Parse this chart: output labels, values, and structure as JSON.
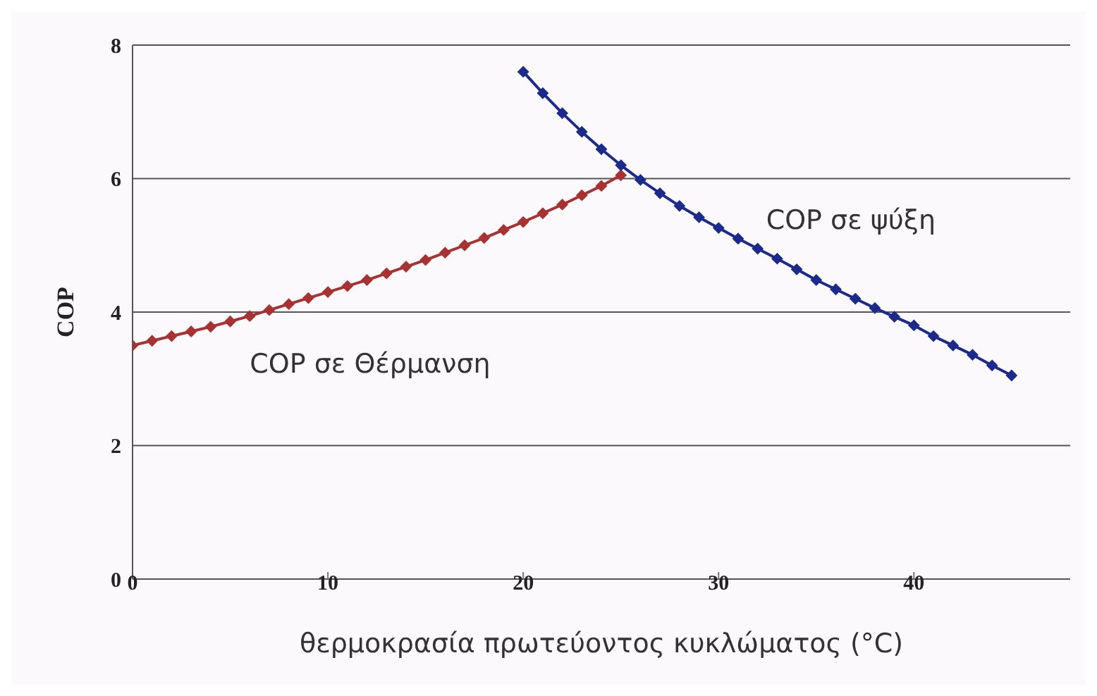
{
  "chart_data": {
    "type": "line",
    "xlabel": "θερμοκρασία πρωτεύοντος κυκλώματος (°C)",
    "ylabel": "COP",
    "xlim": [
      0,
      48
    ],
    "xticks": [
      0,
      10,
      20,
      30,
      40
    ],
    "ylim": [
      0,
      8
    ],
    "yticks": [
      0,
      2,
      4,
      6,
      8
    ],
    "grid": "y",
    "legend": false,
    "marker": "diamond",
    "line_style": "solid",
    "series": [
      {
        "name": "COP σε Θέρμανση",
        "color": "#a83232",
        "x": [
          0,
          1,
          2,
          3,
          4,
          5,
          6,
          7,
          8,
          9,
          10,
          11,
          12,
          13,
          14,
          15,
          16,
          17,
          18,
          19,
          20,
          21,
          22,
          23,
          24,
          25
        ],
        "values": [
          3.5,
          3.57,
          3.64,
          3.71,
          3.78,
          3.86,
          3.94,
          4.03,
          4.12,
          4.21,
          4.3,
          4.39,
          4.48,
          4.58,
          4.68,
          4.78,
          4.89,
          5.0,
          5.11,
          5.23,
          5.35,
          5.48,
          5.61,
          5.75,
          5.89,
          6.05
        ]
      },
      {
        "name": "COP σε ψύξη",
        "color": "#1c2a8c",
        "x": [
          20,
          21,
          22,
          23,
          24,
          25,
          26,
          27,
          28,
          29,
          30,
          31,
          32,
          33,
          34,
          35,
          36,
          37,
          38,
          39,
          40,
          41,
          42,
          43,
          44,
          45
        ],
        "values": [
          7.6,
          7.28,
          6.98,
          6.7,
          6.44,
          6.2,
          5.98,
          5.78,
          5.59,
          5.42,
          5.26,
          5.1,
          4.95,
          4.8,
          4.64,
          4.48,
          4.34,
          4.2,
          4.06,
          3.93,
          3.8,
          3.64,
          3.5,
          3.36,
          3.2,
          3.05
        ]
      }
    ]
  }
}
